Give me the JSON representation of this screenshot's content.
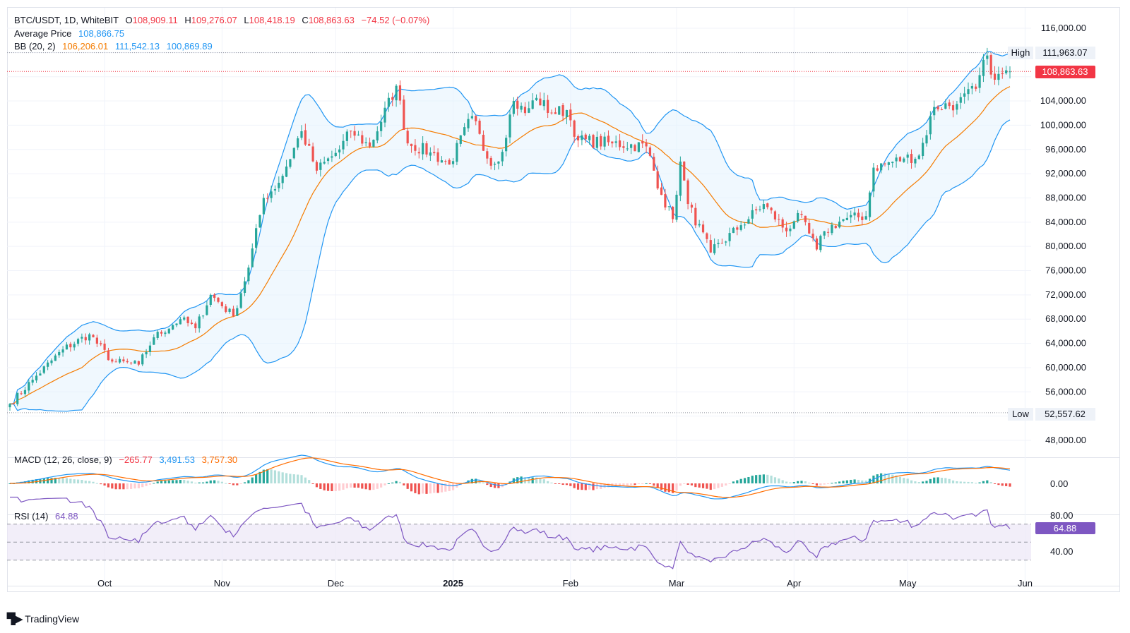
{
  "header": {
    "symbol": "BTC/USDT, 1D, WhiteBIT",
    "o_label": "O",
    "o_value": "108,909.11",
    "h_label": "H",
    "h_value": "109,276.07",
    "l_label": "L",
    "l_value": "108,418.19",
    "c_label": "C",
    "c_value": "108,863.63",
    "change": "−74.52 (−0.07%)",
    "avg_label": "Average Price",
    "avg_value": "108,866.75",
    "bb_label": "BB (20, 2)",
    "bb_basis": "106,206.01",
    "bb_upper": "111,542.13",
    "bb_lower": "100,869.89"
  },
  "macd": {
    "label": "MACD (12, 26, close, 9)",
    "hist": "−265.77",
    "macd": "3,491.53",
    "signal": "3,757.30",
    "zero_label": "0.00"
  },
  "rsi": {
    "label": "RSI (14)",
    "value": "64.88",
    "tick_80": "80.00",
    "tick_40": "40.00"
  },
  "tags": {
    "high_label": "High",
    "high_value": "111,963.07",
    "low_label": "Low",
    "low_value": "52,557.62",
    "last_value": "108,863.63"
  },
  "brand": "TradingView",
  "colors": {
    "up": "#26a69a",
    "down": "#ef5350",
    "bb_basis": "#f57c00",
    "bb_band": "#2196f3",
    "band_fill": "#e3f2fd",
    "macd": "#2196f3",
    "signal": "#ff6d00",
    "rsi": "#7e57c2",
    "rsi_fill": "#ede7f6",
    "text_red": "#f23645",
    "text_blue": "#2962ff"
  },
  "chart_data": {
    "type": "candlestick",
    "price_ticks": [
      "116,000.00",
      "104,000.00",
      "100,000.00",
      "96,000.00",
      "92,000.00",
      "88,000.00",
      "84,000.00",
      "80,000.00",
      "76,000.00",
      "72,000.00",
      "68,000.00",
      "64,000.00",
      "60,000.00",
      "56,000.00",
      "48,000.00"
    ],
    "price_tick_values": [
      116000,
      104000,
      100000,
      96000,
      92000,
      88000,
      84000,
      80000,
      76000,
      72000,
      68000,
      64000,
      60000,
      56000,
      48000
    ],
    "time_labels": [
      "Oct",
      "Nov",
      "Dec",
      "2025",
      "Feb",
      "Mar",
      "Apr",
      "May",
      "Jun"
    ],
    "time_label_dates": [
      "2024-10-01",
      "2024-11-01",
      "2024-12-01",
      "2025-01-01",
      "2025-02-01",
      "2025-03-01",
      "2025-04-01",
      "2025-05-01",
      "2025-06-01"
    ],
    "first_date": "2024-09-06",
    "last_date": "2025-05-28",
    "close_keypoints": [
      [
        "2024-09-06",
        54000
      ],
      [
        "2024-09-12",
        58000
      ],
      [
        "2024-09-20",
        63000
      ],
      [
        "2024-09-27",
        65500
      ],
      [
        "2024-10-03",
        61000
      ],
      [
        "2024-10-10",
        60500
      ],
      [
        "2024-10-14",
        65000
      ],
      [
        "2024-10-21",
        68000
      ],
      [
        "2024-10-25",
        66500
      ],
      [
        "2024-10-29",
        72000
      ],
      [
        "2024-11-04",
        68500
      ],
      [
        "2024-11-08",
        76500
      ],
      [
        "2024-11-12",
        88000
      ],
      [
        "2024-11-16",
        90500
      ],
      [
        "2024-11-22",
        99000
      ],
      [
        "2024-11-26",
        92500
      ],
      [
        "2024-12-02",
        96000
      ],
      [
        "2024-12-05",
        99000
      ],
      [
        "2024-12-10",
        96500
      ],
      [
        "2024-12-17",
        106500
      ],
      [
        "2024-12-20",
        97000
      ],
      [
        "2024-12-26",
        95500
      ],
      [
        "2024-12-31",
        93500
      ],
      [
        "2025-01-06",
        101500
      ],
      [
        "2025-01-10",
        94500
      ],
      [
        "2025-01-13",
        94000
      ],
      [
        "2025-01-17",
        104000
      ],
      [
        "2025-01-20",
        102000
      ],
      [
        "2025-01-23",
        104500
      ],
      [
        "2025-01-27",
        102000
      ],
      [
        "2025-01-31",
        102500
      ],
      [
        "2025-02-03",
        97500
      ],
      [
        "2025-02-12",
        97000
      ],
      [
        "2025-02-21",
        96500
      ],
      [
        "2025-02-25",
        88500
      ],
      [
        "2025-02-28",
        84500
      ],
      [
        "2025-03-02",
        94000
      ],
      [
        "2025-03-04",
        87000
      ],
      [
        "2025-03-10",
        79000
      ],
      [
        "2025-03-18",
        83500
      ],
      [
        "2025-03-24",
        87000
      ],
      [
        "2025-03-30",
        82500
      ],
      [
        "2025-04-02",
        85500
      ],
      [
        "2025-04-07",
        79500
      ],
      [
        "2025-04-09",
        82500
      ],
      [
        "2025-04-14",
        84500
      ],
      [
        "2025-04-20",
        85000
      ],
      [
        "2025-04-22",
        93000
      ],
      [
        "2025-04-30",
        94500
      ],
      [
        "2025-05-04",
        95000
      ],
      [
        "2025-05-08",
        103000
      ],
      [
        "2025-05-14",
        103500
      ],
      [
        "2025-05-19",
        106000
      ],
      [
        "2025-05-22",
        111500
      ],
      [
        "2025-05-24",
        107500
      ],
      [
        "2025-05-28",
        108863.63
      ]
    ],
    "high": 111963.07,
    "low": 52557.62,
    "last": 108863.63,
    "bollinger": {
      "period": 20,
      "mult": 2,
      "basis": 106206.01,
      "upper": 111542.13,
      "lower": 100869.89
    },
    "macd": {
      "fast": 12,
      "slow": 26,
      "signal": 9,
      "hist": -265.77,
      "macd": 3491.53,
      "signal_value": 3757.3
    },
    "rsi": {
      "period": 14,
      "value": 64.88,
      "levels": [
        70,
        50,
        30
      ]
    }
  }
}
